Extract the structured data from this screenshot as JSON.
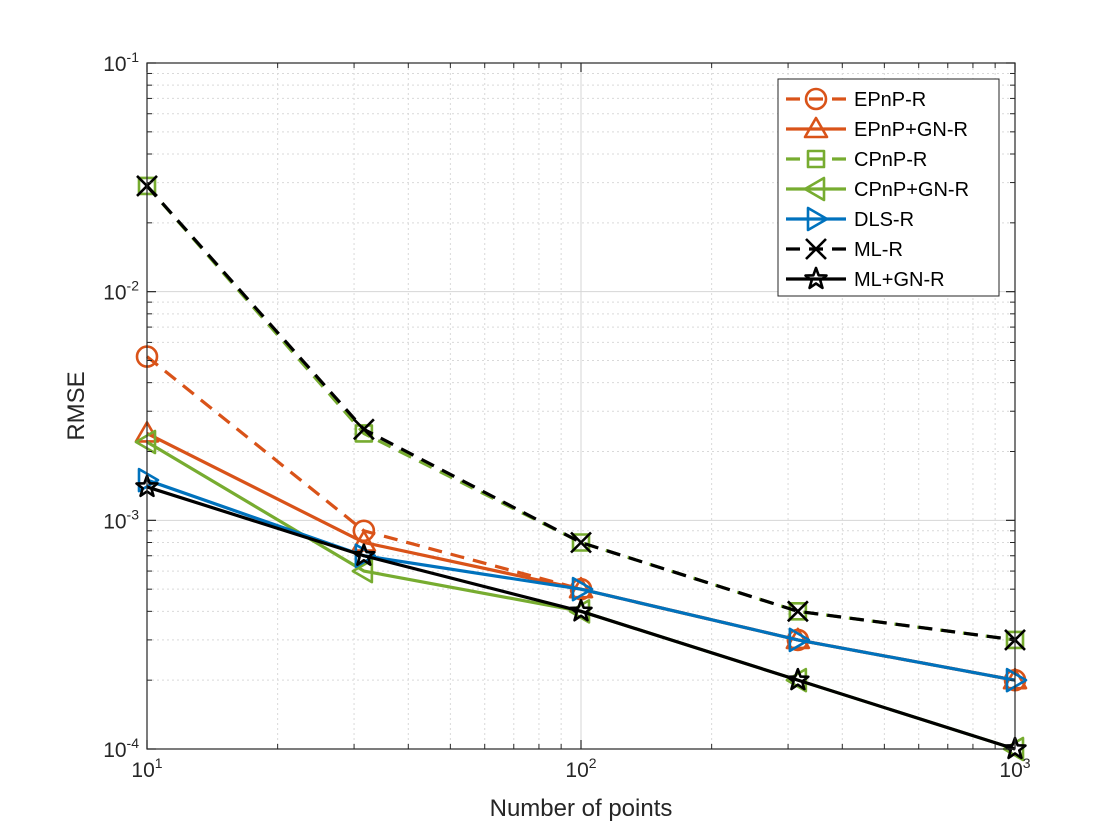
{
  "chart_data": {
    "type": "line",
    "title": "",
    "xlabel": "Number of points",
    "ylabel": "RMSE",
    "xscale": "log",
    "yscale": "log",
    "xlim": [
      10,
      1000
    ],
    "ylim": [
      0.0001,
      0.1
    ],
    "grid": true,
    "legend_position": "top-right",
    "x": [
      10,
      31.6,
      100,
      316,
      1000
    ],
    "x_ticks": [
      {
        "base": "10",
        "exp": "1",
        "value": 10
      },
      {
        "base": "10",
        "exp": "2",
        "value": 100
      },
      {
        "base": "10",
        "exp": "3",
        "value": 1000
      }
    ],
    "y_ticks": [
      {
        "base": "10",
        "exp": "-4",
        "value": 0.0001
      },
      {
        "base": "10",
        "exp": "-3",
        "value": 0.001
      },
      {
        "base": "10",
        "exp": "-2",
        "value": 0.01
      },
      {
        "base": "10",
        "exp": "-1",
        "value": 0.1
      }
    ],
    "series": [
      {
        "name": "EPnP-R",
        "color": "#D95319",
        "dash": "dashed",
        "marker": "circle",
        "values": [
          0.0052,
          0.0009,
          0.0005,
          0.0003,
          0.0002
        ]
      },
      {
        "name": "EPnP+GN-R",
        "color": "#D95319",
        "dash": "solid",
        "marker": "triangle-up",
        "values": [
          0.0024,
          0.0008,
          0.0005,
          0.0003,
          0.0002
        ]
      },
      {
        "name": "CPnP-R",
        "color": "#77AC30",
        "dash": "dashed",
        "marker": "square",
        "values": [
          0.029,
          0.0024,
          0.0008,
          0.0004,
          0.0003
        ]
      },
      {
        "name": "CPnP+GN-R",
        "color": "#77AC30",
        "dash": "solid",
        "marker": "triangle-left",
        "values": [
          0.0022,
          0.0006,
          0.0004,
          0.0002,
          0.0001
        ]
      },
      {
        "name": "DLS-R",
        "color": "#0072BD",
        "dash": "solid",
        "marker": "triangle-right",
        "values": [
          0.0015,
          0.0007,
          0.0005,
          0.0003,
          0.0002
        ]
      },
      {
        "name": "ML-R",
        "color": "#000000",
        "dash": "dashed",
        "marker": "x",
        "values": [
          0.029,
          0.0025,
          0.0008,
          0.0004,
          0.0003
        ]
      },
      {
        "name": "ML+GN-R",
        "color": "#000000",
        "dash": "solid",
        "marker": "pentagram",
        "values": [
          0.0014,
          0.0007,
          0.0004,
          0.0002,
          0.0001
        ]
      }
    ]
  }
}
